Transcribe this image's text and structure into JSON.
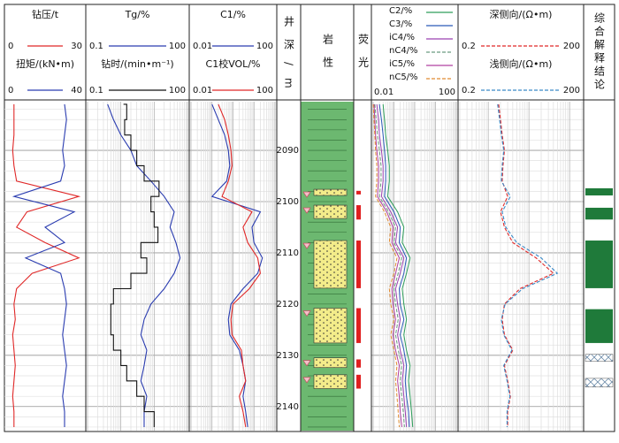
{
  "chart_data": {
    "type": "well-log",
    "depth_label": "井深/m",
    "depth": [
      2081,
      2084,
      2087,
      2090,
      2093,
      2096,
      2099,
      2102,
      2105,
      2108,
      2111,
      2114,
      2117,
      2120,
      2123,
      2126,
      2129,
      2132,
      2135,
      2138,
      2141,
      2144
    ],
    "ylim": [
      2080.5,
      2144.7
    ],
    "yticks": [
      2090,
      2100,
      2110,
      2120,
      2130,
      2140
    ],
    "tracks": [
      {
        "curves": [
          {
            "name": "钻压/t",
            "color": "#e02828",
            "xlim": [
              0,
              30
            ],
            "xticks": [
              0,
              30
            ],
            "values": [
              3,
              3,
              3,
              2.5,
              3,
              4,
              28,
              8,
              4,
              15,
              28,
              10,
              4,
              3,
              3.5,
              2.5,
              3,
              3.5,
              3,
              2.5,
              3,
              3
            ]
          },
          {
            "name": "扭矩/(kN•m)",
            "color": "#2a3cb0",
            "xlim": [
              0,
              40
            ],
            "xticks": [
              0,
              40
            ],
            "values": [
              30,
              31,
              30,
              29,
              30,
              28,
              4,
              35,
              20,
              30,
              10,
              28,
              30,
              31,
              30,
              29,
              30,
              31,
              30,
              29,
              30,
              30
            ]
          }
        ]
      },
      {
        "curves": [
          {
            "name": "Tg/%",
            "color": "#2a3cb0",
            "log": true,
            "xlim": [
              0.1,
              100
            ],
            "xticks": [
              0.1,
              100
            ],
            "values": [
              0.4,
              0.6,
              1,
              2,
              3,
              8,
              20,
              40,
              30,
              45,
              60,
              40,
              20,
              8,
              5,
              4,
              6,
              5,
              4,
              6,
              5,
              5
            ]
          },
          {
            "name": "钻时/(min•m⁻¹)",
            "color": "#111111",
            "log": true,
            "step": true,
            "xlim": [
              0.1,
              100
            ],
            "xticks": [
              0.1,
              100
            ],
            "values": [
              1.2,
              1.5,
              1.3,
              2,
              3,
              5,
              14,
              8,
              10,
              13,
              4,
              6,
              2,
              0.6,
              0.5,
              0.5,
              0.6,
              1,
              1.5,
              3,
              5,
              10
            ]
          }
        ]
      },
      {
        "curves": [
          {
            "name": "C1/%",
            "color": "#2a3cb0",
            "log": true,
            "xlim": [
              0.01,
              100
            ],
            "xticks": [
              0.01,
              100
            ],
            "values": [
              0.1,
              0.2,
              0.4,
              0.6,
              0.7,
              0.5,
              0.1,
              20,
              8,
              10,
              25,
              15,
              3,
              0.8,
              0.6,
              0.7,
              2,
              3,
              4,
              3,
              4,
              5
            ]
          },
          {
            "name": "C1校VOL/%",
            "color": "#e02828",
            "log": true,
            "xlim": [
              0.01,
              100
            ],
            "xticks": [
              0.01,
              100
            ],
            "values": [
              0.2,
              0.4,
              0.6,
              0.8,
              0.9,
              0.6,
              0.3,
              8,
              3,
              5,
              15,
              20,
              6,
              1,
              0.8,
              0.9,
              2.5,
              3,
              4,
              2,
              3,
              4
            ]
          }
        ]
      },
      {
        "curves": [
          {
            "name": "深侧向/(Ω•m)",
            "color": "#e02828",
            "dash": true,
            "log": true,
            "xlim": [
              0.2,
              200
            ],
            "xticks": [
              0.2,
              200
            ],
            "values": [
              1.8,
              2,
              2.2,
              2.5,
              2.3,
              2.2,
              3,
              2,
              2.5,
              4,
              15,
              40,
              6,
              2.5,
              2.2,
              2.5,
              4,
              2.5,
              3,
              3.5,
              3,
              3
            ]
          },
          {
            "name": "浅侧向/(Ω•m)",
            "color": "#3a8ac8",
            "dash": true,
            "log": true,
            "xlim": [
              0.2,
              200
            ],
            "xticks": [
              0.2,
              200
            ],
            "values": [
              1.7,
              1.9,
              2.1,
              2.4,
              2.2,
              2.1,
              3.5,
              2.2,
              2.7,
              5,
              20,
              50,
              7,
              2.6,
              2.1,
              2.4,
              3.8,
              2.4,
              2.9,
              3.4,
              2.9,
              2.9
            ]
          }
        ]
      }
    ],
    "gas": {
      "log": true,
      "xlim": [
        0.01,
        100
      ],
      "xticks": [
        0.01,
        100
      ],
      "series": [
        {
          "name": "C2/%",
          "color": "#2e9e5a",
          "values": [
            0.03,
            0.035,
            0.04,
            0.05,
            0.06,
            0.06,
            0.05,
            0.15,
            0.3,
            0.25,
            0.6,
            0.4,
            0.25,
            0.3,
            0.4,
            0.3,
            0.4,
            0.6,
            0.5,
            0.6,
            0.7,
            0.8
          ]
        },
        {
          "name": "C3/%",
          "color": "#2a5ab8",
          "values": [
            0.02,
            0.025,
            0.03,
            0.035,
            0.04,
            0.04,
            0.035,
            0.1,
            0.2,
            0.18,
            0.4,
            0.3,
            0.18,
            0.2,
            0.3,
            0.2,
            0.3,
            0.4,
            0.35,
            0.4,
            0.5,
            0.55
          ]
        },
        {
          "name": "iC4/%",
          "color": "#9b40b0",
          "values": [
            0.015,
            0.018,
            0.02,
            0.025,
            0.03,
            0.03,
            0.025,
            0.07,
            0.15,
            0.12,
            0.3,
            0.2,
            0.12,
            0.15,
            0.2,
            0.15,
            0.2,
            0.3,
            0.25,
            0.3,
            0.35,
            0.4
          ]
        },
        {
          "name": "nC4/%",
          "color": "#6a9a80",
          "dash": true,
          "values": [
            0.012,
            0.014,
            0.016,
            0.02,
            0.024,
            0.024,
            0.02,
            0.055,
            0.12,
            0.1,
            0.24,
            0.16,
            0.1,
            0.12,
            0.16,
            0.12,
            0.16,
            0.24,
            0.2,
            0.24,
            0.28,
            0.32
          ]
        },
        {
          "name": "iC5/%",
          "color": "#b040a0",
          "values": [
            0.011,
            0.012,
            0.013,
            0.015,
            0.018,
            0.018,
            0.016,
            0.045,
            0.09,
            0.08,
            0.18,
            0.12,
            0.08,
            0.09,
            0.12,
            0.09,
            0.12,
            0.18,
            0.15,
            0.18,
            0.2,
            0.24
          ]
        },
        {
          "name": "nC5/%",
          "color": "#e08a30",
          "dash": true,
          "values": [
            0.01,
            0.011,
            0.012,
            0.013,
            0.015,
            0.015,
            0.013,
            0.035,
            0.07,
            0.06,
            0.14,
            0.1,
            0.06,
            0.07,
            0.1,
            0.07,
            0.1,
            0.14,
            0.12,
            0.14,
            0.16,
            0.18
          ]
        }
      ]
    },
    "lithology": {
      "label": "岩性",
      "sand": [
        [
          2097.6,
          2098.8
        ],
        [
          2100.7,
          2103.3
        ],
        [
          2107.6,
          2116.9
        ],
        [
          2120.8,
          2127.6
        ],
        [
          2130.5,
          2132.4
        ],
        [
          2133.8,
          2136.5
        ]
      ]
    },
    "fluorescence": {
      "label": "荧光",
      "intervals": [
        [
          2097.9,
          2098.6
        ],
        [
          2100.7,
          2103.5
        ],
        [
          2107.6,
          2116.9
        ],
        [
          2120.8,
          2127.6
        ],
        [
          2130.8,
          2132.4
        ],
        [
          2133.8,
          2136.5
        ]
      ]
    },
    "interpretation": {
      "label": "综合解释结论",
      "oil": [
        [
          2097.4,
          2098.8
        ],
        [
          2101.2,
          2103.5
        ],
        [
          2107.6,
          2116.9
        ],
        [
          2121.0,
          2127.6
        ]
      ],
      "other": [
        [
          2129.8,
          2131.2
        ],
        [
          2134.5,
          2136.2
        ]
      ]
    }
  }
}
